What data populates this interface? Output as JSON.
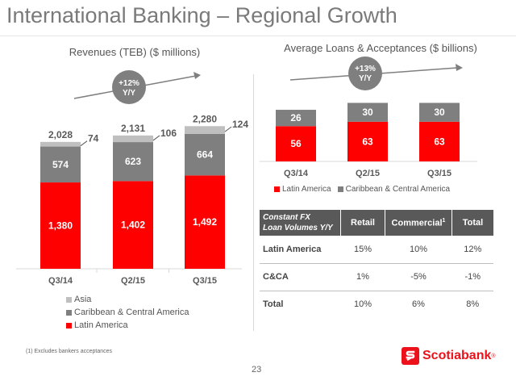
{
  "slide": {
    "title": "International Banking – Regional Growth",
    "footnote": "(1)    Excludes bankers acceptances",
    "page_number": "23",
    "brand": "Scotiabank",
    "brand_mark": "®",
    "brand_color": "#ec111a"
  },
  "colors": {
    "latin_america": "#ff0000",
    "caribbean": "#7f7f7f",
    "asia": "#bfbfbf",
    "table_header": "#595959"
  },
  "chart_data": [
    {
      "type": "bar",
      "stacked": true,
      "title": "Revenues (TEB) ($ millions)",
      "categories": [
        "Q3/14",
        "Q2/15",
        "Q3/15"
      ],
      "totals": [
        "2,028",
        "2,131",
        "2,280"
      ],
      "growth_label": [
        "+12%",
        "Y/Y"
      ],
      "series": [
        {
          "name": "Latin America",
          "values": [
            1380,
            1402,
            1492
          ],
          "labels": [
            "1,380",
            "1,402",
            "1,492"
          ]
        },
        {
          "name": "Caribbean & Central America",
          "values": [
            574,
            623,
            664
          ],
          "labels": [
            "574",
            "623",
            "664"
          ]
        },
        {
          "name": "Asia",
          "values": [
            74,
            106,
            124
          ],
          "labels": [
            "74",
            "106",
            "124"
          ]
        }
      ],
      "legend": [
        "Asia",
        "Caribbean & Central America",
        "Latin America"
      ],
      "legend_position": "bottom-left"
    },
    {
      "type": "bar",
      "stacked": true,
      "title": "Average Loans & Acceptances ($ billions)",
      "categories": [
        "Q3/14",
        "Q2/15",
        "Q3/15"
      ],
      "growth_label": [
        "+13%",
        "Y/Y"
      ],
      "series": [
        {
          "name": "Latin America",
          "values": [
            56,
            63,
            63
          ],
          "labels": [
            "56",
            "63",
            "63"
          ]
        },
        {
          "name": "Caribbean & Central America",
          "values": [
            26,
            30,
            30
          ],
          "labels": [
            "26",
            "30",
            "30"
          ]
        }
      ],
      "legend": [
        "Latin America",
        "Caribbean & Central America"
      ],
      "legend_position": "bottom"
    }
  ],
  "table": {
    "header_title_line1": "Constant FX",
    "header_title_line2": "Loan Volumes Y/Y",
    "columns": [
      "Retail",
      "Commercial",
      "Total"
    ],
    "commercial_note": "1",
    "rows": [
      {
        "label": "Latin America",
        "values": [
          "15%",
          "10%",
          "12%"
        ]
      },
      {
        "label": "C&CA",
        "values": [
          "1%",
          "-5%",
          "-1%"
        ]
      },
      {
        "label": "Total",
        "values": [
          "10%",
          "6%",
          "8%"
        ]
      }
    ]
  }
}
